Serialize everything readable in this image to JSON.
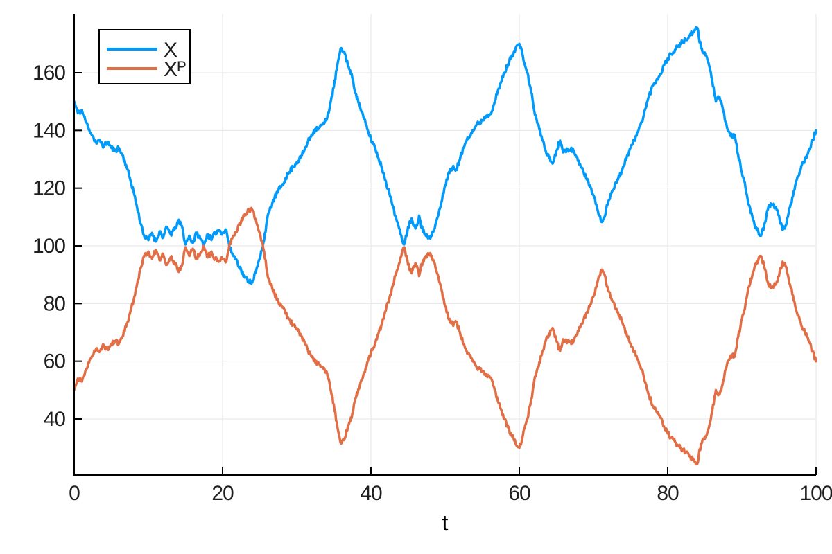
{
  "chart_data": {
    "type": "line",
    "title": "",
    "xlabel": "t",
    "ylabel": "",
    "xlim": [
      0,
      100
    ],
    "ylim": [
      20.5,
      180.5
    ],
    "xticks": [
      0,
      20,
      40,
      60,
      80,
      100
    ],
    "yticks": [
      40,
      60,
      80,
      100,
      120,
      140,
      160
    ],
    "grid": true,
    "legend_position": "top-left",
    "x_start": 0,
    "x_step": 0.5,
    "series": [
      {
        "name": "X",
        "color": "#009AFA",
        "noise_sign": 1,
        "values": [
          150,
          146,
          147,
          143.5,
          140.5,
          138,
          135.5,
          136.5,
          134.5,
          136,
          134,
          133,
          134,
          131.5,
          128,
          123.5,
          119,
          113,
          107.5,
          103,
          102,
          104.5,
          101.5,
          105,
          103,
          106.5,
          104,
          105.5,
          108.5,
          107,
          100.5,
          103.5,
          101,
          104.5,
          102.5,
          100.5,
          104,
          102,
          104.5,
          105.5,
          104.5,
          105.5,
          99,
          96.5,
          94.5,
          91.5,
          89,
          88,
          87.5,
          91,
          95.5,
          101,
          109,
          113.5,
          116.5,
          119,
          121,
          123.5,
          125.5,
          127.5,
          129,
          130.5,
          133,
          136,
          138.5,
          140.5,
          141,
          142,
          143.5,
          149,
          155,
          163,
          168.5,
          166.5,
          162,
          158,
          152.5,
          148.5,
          144.5,
          140.5,
          137,
          134.5,
          130.5,
          127,
          122.5,
          118,
          113.5,
          108.5,
          104,
          100.5,
          106.5,
          109.5,
          106,
          110.5,
          105,
          104,
          102.5,
          105.5,
          110,
          115,
          121,
          125.5,
          127,
          126.5,
          130,
          134,
          137.5,
          139,
          141,
          142.5,
          143.5,
          145,
          145.5,
          148.5,
          152.5,
          156.5,
          160,
          163,
          166,
          168.5,
          170,
          165.5,
          160.5,
          155,
          147,
          142,
          138,
          133.5,
          130.5,
          128.5,
          133,
          136.5,
          132.5,
          133.5,
          134,
          131.5,
          129.5,
          127,
          123.5,
          121,
          117.5,
          113,
          108.5,
          110,
          115.5,
          119,
          122,
          124,
          127.5,
          131,
          134,
          136.5,
          139.5,
          143,
          147.5,
          152,
          155.5,
          157.5,
          159.5,
          162.5,
          165,
          166.5,
          168,
          169.5,
          170.5,
          171.5,
          173,
          174,
          175.5,
          168.5,
          167,
          163.5,
          157.5,
          150,
          151.5,
          146.5,
          141,
          138,
          138.5,
          131.5,
          125.5,
          120,
          114,
          109,
          105.5,
          103.5,
          107,
          112.5,
          114.5,
          113.5,
          110.5,
          105.5,
          107.5,
          113.5,
          119,
          124,
          127.5,
          130,
          133,
          136.5,
          140
        ]
      },
      {
        "name": "Xᴾ",
        "color": "#E26E46",
        "noise_sign": -1,
        "values": [
          50,
          54,
          53,
          56.5,
          59.5,
          62,
          64.5,
          63.5,
          65.5,
          64,
          66,
          67,
          66,
          68.5,
          72,
          76.5,
          81,
          87,
          92.5,
          97,
          98,
          95.5,
          98.5,
          95,
          97,
          93.5,
          96,
          94.5,
          91.5,
          93,
          99.5,
          96.5,
          99,
          95.5,
          97.5,
          99.5,
          96,
          98,
          95.5,
          94.5,
          95.5,
          94.5,
          101,
          103.5,
          105.5,
          108.5,
          111,
          112,
          112.5,
          109,
          104.5,
          99,
          91,
          86.5,
          83.5,
          81,
          79,
          76.5,
          74.5,
          72.5,
          71,
          69.5,
          67,
          64,
          61.5,
          59.5,
          59,
          58,
          56.5,
          51,
          45,
          37,
          31.5,
          33.5,
          38,
          42,
          47.5,
          51.5,
          55.5,
          59.5,
          63,
          65.5,
          69.5,
          73,
          77.5,
          82,
          86.5,
          91.5,
          96,
          99.5,
          93.5,
          90.5,
          94,
          89.5,
          95,
          96,
          97.5,
          94.5,
          90,
          85,
          79,
          74.5,
          73,
          73.5,
          70,
          66,
          62.5,
          61,
          59,
          57.5,
          56.5,
          55,
          54.5,
          51.5,
          47.5,
          43.5,
          40,
          37,
          34,
          31.5,
          30,
          34.5,
          39.5,
          45,
          53,
          58,
          62,
          66.5,
          69.5,
          71.5,
          67,
          63.5,
          67.5,
          66.5,
          66,
          68.5,
          70.5,
          73,
          76.5,
          79,
          82.5,
          87,
          91.5,
          90,
          84.5,
          81,
          78,
          76,
          72.5,
          69,
          66,
          63.5,
          60.5,
          57,
          52.5,
          48,
          44.5,
          42.5,
          40.5,
          37.5,
          35,
          33.5,
          32,
          30.5,
          29.5,
          28.5,
          27,
          26,
          24.5,
          31.5,
          33,
          36.5,
          42.5,
          50,
          48.5,
          53.5,
          59,
          62,
          61.5,
          68.5,
          74.5,
          80,
          86,
          91,
          94.5,
          96.5,
          93,
          87.5,
          85.5,
          86.5,
          89.5,
          94.5,
          92.5,
          86.5,
          81,
          76,
          72.5,
          70,
          67,
          63.5,
          60
        ]
      }
    ]
  },
  "style": {
    "background": "#ffffff",
    "axis_color": "#000000",
    "grid_color": "#e6e6e6",
    "tick_label_color": "#1f1f1f",
    "legend_border_color": "#000000",
    "legend_fill": "#ffffff",
    "line_width": 3.5,
    "render_noise": {
      "seed": 11,
      "amplitude": 0.9,
      "substeps": 5
    }
  }
}
